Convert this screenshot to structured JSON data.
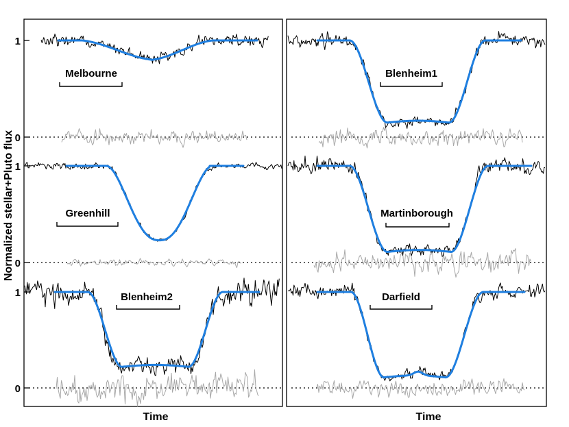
{
  "chart_data": {
    "type": "line",
    "ylabel": "Normalized stellar+Pluto flux",
    "xlabel": "Time",
    "yticks": [
      "0",
      "1"
    ],
    "colors": {
      "observed": "#000000",
      "model": "#1f7fe0",
      "residual": "#a8a8a8"
    },
    "panels": [
      {
        "station": "Melbourne",
        "column": 0,
        "row": 0,
        "baseline": 1.0,
        "min_flux": 0.8,
        "shape": "grazing",
        "noise": 0.05,
        "residual_noise": 0.06
      },
      {
        "station": "Greenhill",
        "column": 0,
        "row": 1,
        "baseline": 1.0,
        "min_flux": 0.23,
        "shape": "rounded",
        "noise": 0.025,
        "residual_noise": 0.03
      },
      {
        "station": "Blenheim2",
        "column": 0,
        "row": 2,
        "baseline": 1.0,
        "min_flux": 0.22,
        "shape": "flat",
        "noise": 0.11,
        "residual_noise": 0.13
      },
      {
        "station": "Blenheim1",
        "column": 1,
        "row": 0,
        "baseline": 1.0,
        "min_flux": 0.15,
        "shape": "flat",
        "noise": 0.06,
        "residual_noise": 0.07
      },
      {
        "station": "Martinborough",
        "column": 1,
        "row": 1,
        "baseline": 1.0,
        "min_flux": 0.11,
        "shape": "flat",
        "noise": 0.07,
        "residual_noise": 0.09
      },
      {
        "station": "Darfield",
        "column": 1,
        "row": 2,
        "baseline": 1.0,
        "min_flux": 0.11,
        "shape": "flash",
        "noise": 0.06,
        "residual_noise": 0.07
      }
    ]
  }
}
